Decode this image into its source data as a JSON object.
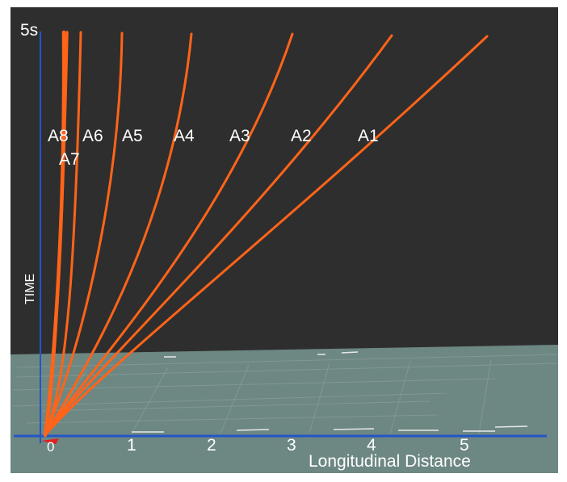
{
  "scene": {
    "colors": {
      "sky": "#2e2e2e",
      "ground": "#6d8783",
      "grid": "#8fa6a2",
      "axis": "#2356c8",
      "trajectory": "#ff6419",
      "origin_marker": "#e02020",
      "text": "#ffffff"
    },
    "time_axis": {
      "max_label": "5s",
      "title": "TIME"
    },
    "distance_axis": {
      "title": "Longitudinal Distance",
      "origin_label": "0",
      "ticks": [
        "1",
        "2",
        "3",
        "4",
        "5"
      ]
    },
    "trajectories": [
      {
        "label": "A1"
      },
      {
        "label": "A2"
      },
      {
        "label": "A3"
      },
      {
        "label": "A4"
      },
      {
        "label": "A5"
      },
      {
        "label": "A6"
      },
      {
        "label": "A7"
      },
      {
        "label": "A8"
      }
    ]
  }
}
